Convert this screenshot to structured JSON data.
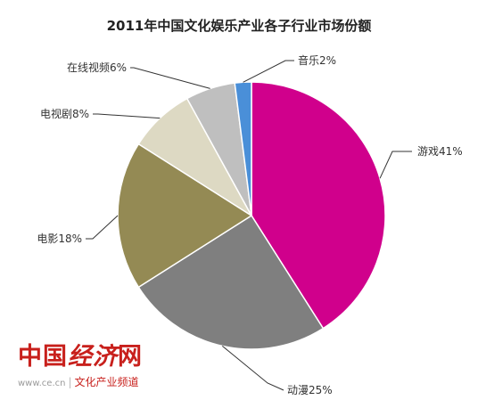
{
  "chart_data": {
    "type": "pie",
    "title": "2011年中国文化娱乐产业各子行业市场份额",
    "slices": [
      {
        "label": "游戏41%",
        "value": 41,
        "color": "#d0008c"
      },
      {
        "label": "动漫25%",
        "value": 25,
        "color": "#7f7f7f"
      },
      {
        "label": "电影18%",
        "value": 18,
        "color": "#948a54"
      },
      {
        "label": "电视剧8%",
        "value": 8,
        "color": "#ddd9c3"
      },
      {
        "label": "在线视频6%",
        "value": 6,
        "color": "#bfbfbf"
      },
      {
        "label": "音乐2%",
        "value": 2,
        "color": "#4a8fd8"
      }
    ],
    "start_angle_deg": 0,
    "direction": "clockwise",
    "legend": "none"
  },
  "watermark": {
    "brand": "中国",
    "brand_script": "经济",
    "brand_tail": "网",
    "url": "www.ce.cn",
    "channel": "文化产业频道"
  }
}
